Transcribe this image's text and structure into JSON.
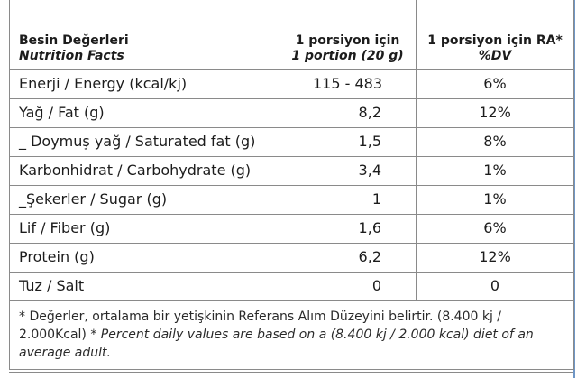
{
  "header": {
    "name_tr": "Besin Değerleri",
    "name_en": "Nutrition Facts",
    "portion_tr": "1 porsiyon için",
    "portion_en": "1 portion (20 g)",
    "ra_tr": "1 porsiyon için RA*",
    "ra_en": "%DV"
  },
  "rows": [
    {
      "name": "Enerji / Energy (kcal/kj)",
      "portion": "115 - 483",
      "ra": "6%"
    },
    {
      "name": "Yağ / Fat (g)",
      "portion": "8,2",
      "ra": "12%"
    },
    {
      "name": "_ Doymuş yağ / Saturated fat (g)",
      "portion": "1,5",
      "ra": "8%"
    },
    {
      "name": "Karbonhidrat / Carbohydrate (g)",
      "portion": "3,4",
      "ra": "1%"
    },
    {
      "name": "_Şekerler / Sugar (g)",
      "portion": "1",
      "ra": "1%"
    },
    {
      "name": "Lif / Fiber (g)",
      "portion": "1,6",
      "ra": "6%"
    },
    {
      "name": "Protein (g)",
      "portion": "6,2",
      "ra": "12%"
    },
    {
      "name": "Tuz / Salt",
      "portion": "0",
      "ra": "0"
    }
  ],
  "footnote": {
    "tr": "* Değerler, ortalama bir yetişkinin Referans Alım Düzeyini belirtir. (8.400 kj / 2.000Kcal)",
    "en": "* Percent daily values are based on a (8.400 kj / 2.000 kcal) diet of an average adult."
  },
  "colors": {
    "accent_line": "#6f97c7",
    "grid_line": "#8a8a8a"
  }
}
